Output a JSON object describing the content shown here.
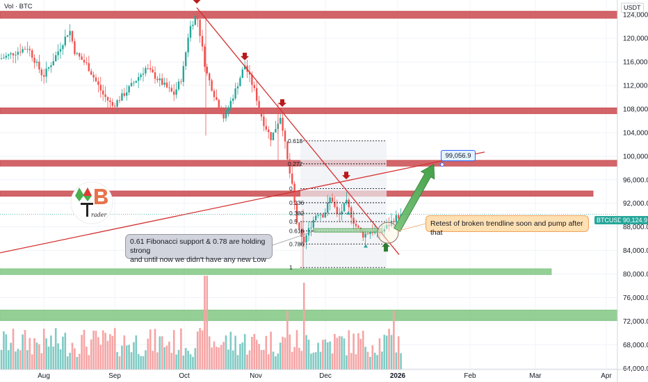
{
  "header": {
    "indicator_label": "Vol · BTC",
    "currency_label": "USDT"
  },
  "chart_data": {
    "type": "candlestick",
    "title": "",
    "x_ticks": [
      "Aug",
      "Sep",
      "Oct",
      "Nov",
      "Dec",
      "2026",
      "Feb",
      "Mar",
      "Apr"
    ],
    "y_ticks": [
      64000,
      68000,
      72000,
      76000,
      80000,
      84000,
      88000,
      92000,
      96000,
      100000,
      104000,
      108000,
      112000,
      116000,
      120000,
      124000
    ],
    "ylim": [
      63800,
      126500
    ],
    "last_price": 90124.9,
    "last_price_label": "90,124.9",
    "pair_label": "BTCUSDT",
    "target_label": "99,056.9",
    "resistance_zones": [
      {
        "name": "zone-124k",
        "low": 123400,
        "high": 124600,
        "color": "#c94a4f"
      },
      {
        "name": "zone-108k",
        "low": 107200,
        "high": 108200,
        "color": "#c94a4f"
      },
      {
        "name": "zone-99k",
        "low": 98300,
        "high": 99300,
        "color": "#c94a4f"
      },
      {
        "name": "zone-93k",
        "low": 93200,
        "high": 94100,
        "color": "#c94a4f"
      }
    ],
    "support_zones": [
      {
        "name": "zone-80k",
        "low": 79900,
        "high": 80900,
        "color": "#81c784"
      },
      {
        "name": "zone-72k",
        "low": 72100,
        "high": 73900,
        "color": "#81c784"
      }
    ],
    "fibonacci_levels": [
      {
        "label": "0.618",
        "price": 102600
      },
      {
        "label": "0.272",
        "price": 98700
      },
      {
        "label": "0",
        "price": 94500
      },
      {
        "label": "0.236",
        "price": 92100
      },
      {
        "label": "0.382",
        "price": 90300
      },
      {
        "label": "0.5",
        "price": 88900
      },
      {
        "label": "0.618",
        "price": 87300
      },
      {
        "label": "0.786",
        "price": 85100
      },
      {
        "label": "1",
        "price": 81100
      }
    ],
    "annotations": [
      {
        "id": "fib",
        "text_line1": "0.61 Fibonacci support & 0.78 are holding strong",
        "text_line2": "and until now we didn't have any new Low"
      },
      {
        "id": "retest",
        "text": "Retest of broken trendline soon and pump after that"
      }
    ],
    "colors": {
      "up": "#26a69a",
      "down": "#ef5350",
      "trendline": "#d32f2f",
      "arrow_marker": "#b71c1c",
      "vol_up": "#80cbc4",
      "vol_down": "#f6a4a4"
    }
  }
}
